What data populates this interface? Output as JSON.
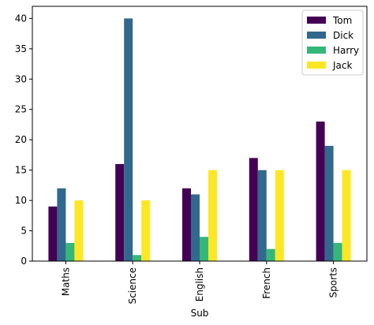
{
  "chart_data": {
    "type": "bar",
    "title": "",
    "xlabel": "Sub",
    "ylabel": "",
    "categories": [
      "Maths",
      "Science",
      "English",
      "French",
      "Sports"
    ],
    "series": [
      {
        "name": "Tom",
        "color": "#440154",
        "values": [
          9,
          16,
          12,
          17,
          23
        ]
      },
      {
        "name": "Dick",
        "color": "#31688e",
        "values": [
          12,
          40,
          11,
          15,
          19
        ]
      },
      {
        "name": "Harry",
        "color": "#35b779",
        "values": [
          3,
          1,
          4,
          2,
          3
        ]
      },
      {
        "name": "Jack",
        "color": "#fde725",
        "values": [
          10,
          10,
          15,
          15,
          15
        ]
      }
    ],
    "ylim": [
      0,
      42
    ],
    "yticks": [
      0,
      5,
      10,
      15,
      20,
      25,
      30,
      35,
      40
    ],
    "grid": false,
    "legend_position": "top-right",
    "xtick_rotation": "vertical"
  }
}
